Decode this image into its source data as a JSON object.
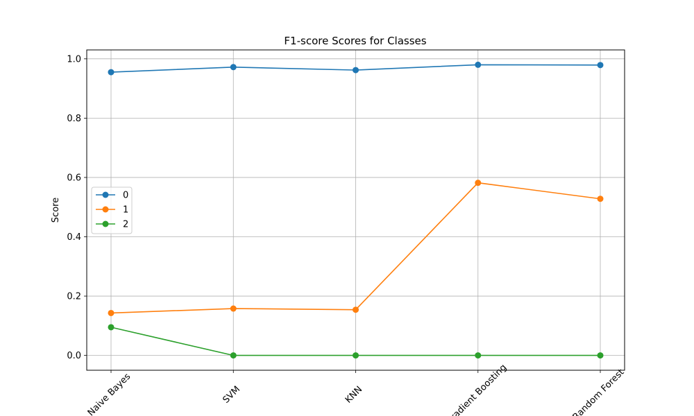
{
  "chart_data": {
    "type": "line",
    "title": "F1-score Scores for Classes",
    "xlabel": "",
    "ylabel": "Score",
    "categories": [
      "Naive Bayes",
      "SVM",
      "KNN",
      "Gradient Boosting",
      "Random Forest"
    ],
    "ylim": [
      -0.05,
      1.03
    ],
    "yticks": [
      0.0,
      0.2,
      0.4,
      0.6,
      0.8,
      1.0
    ],
    "ytick_labels": [
      "0.0",
      "0.2",
      "0.4",
      "0.6",
      "0.8",
      "1.0"
    ],
    "grid": true,
    "legend_position": "center-left",
    "series": [
      {
        "name": "0",
        "color": "#1f77b4",
        "values": [
          0.955,
          0.972,
          0.962,
          0.98,
          0.979
        ]
      },
      {
        "name": "1",
        "color": "#ff7f0e",
        "values": [
          0.143,
          0.158,
          0.154,
          0.582,
          0.528
        ]
      },
      {
        "name": "2",
        "color": "#2ca02c",
        "values": [
          0.095,
          0.0,
          0.0,
          0.0,
          0.0
        ]
      }
    ]
  }
}
